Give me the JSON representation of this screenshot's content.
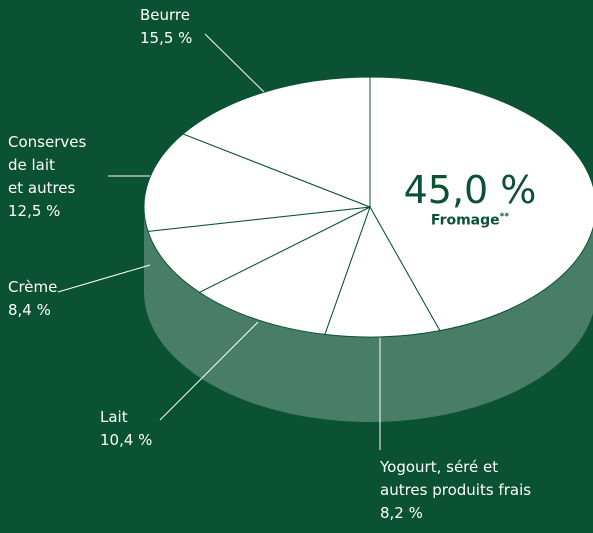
{
  "chart_data": {
    "type": "pie",
    "categories": [
      "Fromage",
      "Yogourt, séré et\nautres produits frais",
      "Lait",
      "Crème",
      "Conserves\nde lait\net autres",
      "Beurre"
    ],
    "values": [
      45.0,
      8.2,
      10.4,
      8.4,
      12.5,
      15.5
    ],
    "value_labels": [
      "45,0 %",
      "8,2 %",
      "10,4 %",
      "8,4 %",
      "12,5 %",
      "15,5 %"
    ],
    "footnote_mark": "**",
    "color": "#ffffff"
  }
}
